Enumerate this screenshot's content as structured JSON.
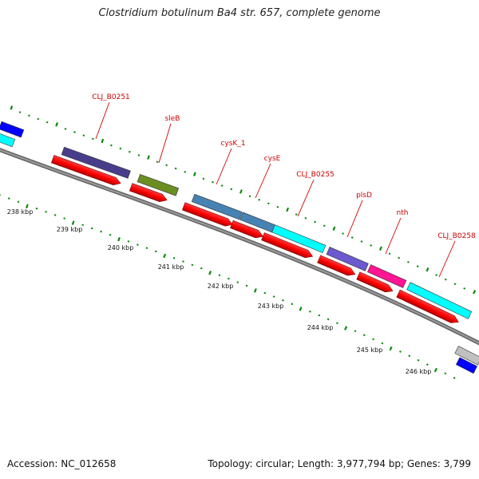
{
  "title": "Clostridium botulinum Ba4 str. 657, complete genome",
  "footer": {
    "accession": "Accession: NC_012658",
    "topology": "Topology: circular; Length: 3,977,794 bp; Genes: 3,799"
  },
  "colors": {
    "backbone": "#808080",
    "cds": "#ff0000",
    "gc_ticks": "#0a8a0a",
    "gene_label": "#d00000"
  },
  "scale_labels": [
    "238 kbp",
    "239 kbp",
    "240 kbp",
    "241 kbp",
    "242 kbp",
    "243 kbp",
    "244 kbp",
    "245 kbp",
    "246 kbp"
  ],
  "gene_labels": [
    "CLJ_B0251",
    "sleB",
    "cysK_1",
    "cysE",
    "CLJ_B0255",
    "plsD",
    "nth",
    "CLJ_B0258"
  ],
  "feature_colors": [
    "#0000ff",
    "#00ffff",
    "#483d8b",
    "#6b8e23",
    "#4682b4",
    "#4682b4",
    "#00ffff",
    "#6a5acd",
    "#ff1493",
    "#00ffff",
    "#0000ff",
    "#c0c0c0"
  ]
}
